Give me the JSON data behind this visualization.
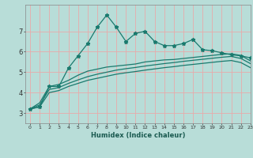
{
  "xlabel": "Humidex (Indice chaleur)",
  "bg_color": "#b8ddd8",
  "grid_color": "#e8aaaa",
  "line_color": "#1a7a6e",
  "x_values": [
    0,
    1,
    2,
    3,
    4,
    5,
    6,
    7,
    8,
    9,
    10,
    11,
    12,
    13,
    14,
    15,
    16,
    17,
    18,
    19,
    20,
    21,
    22,
    23
  ],
  "series1": [
    3.2,
    3.3,
    4.3,
    4.3,
    5.2,
    5.8,
    6.4,
    7.2,
    7.8,
    7.2,
    6.5,
    6.9,
    7.0,
    6.5,
    6.3,
    6.3,
    6.4,
    6.6,
    6.1,
    6.05,
    5.95,
    5.85,
    5.8,
    5.7
  ],
  "series2": [
    3.2,
    3.5,
    4.3,
    4.4,
    4.6,
    4.85,
    5.05,
    5.15,
    5.25,
    5.3,
    5.35,
    5.4,
    5.5,
    5.55,
    5.6,
    5.62,
    5.67,
    5.72,
    5.77,
    5.82,
    5.87,
    5.9,
    5.82,
    5.55
  ],
  "series3": [
    3.2,
    3.4,
    4.15,
    4.25,
    4.45,
    4.62,
    4.78,
    4.9,
    5.0,
    5.1,
    5.17,
    5.23,
    5.3,
    5.36,
    5.42,
    5.47,
    5.53,
    5.58,
    5.63,
    5.68,
    5.73,
    5.77,
    5.67,
    5.42
  ],
  "series4": [
    3.2,
    3.3,
    4.0,
    4.1,
    4.3,
    4.45,
    4.6,
    4.7,
    4.8,
    4.9,
    4.97,
    5.03,
    5.1,
    5.16,
    5.22,
    5.27,
    5.33,
    5.38,
    5.43,
    5.48,
    5.53,
    5.57,
    5.47,
    5.22
  ],
  "ylim": [
    2.5,
    8.3
  ],
  "xlim": [
    -0.5,
    23
  ],
  "yticks": [
    3,
    4,
    5,
    6,
    7
  ],
  "xticks": [
    0,
    1,
    2,
    3,
    4,
    5,
    6,
    7,
    8,
    9,
    10,
    11,
    12,
    13,
    14,
    15,
    16,
    17,
    18,
    19,
    20,
    21,
    22,
    23
  ],
  "xtick_labels": [
    "0",
    "1",
    "2",
    "3",
    "4",
    "5",
    "6",
    "7",
    "8",
    "9",
    "10",
    "11",
    "12",
    "13",
    "14",
    "15",
    "16",
    "17",
    "18",
    "19",
    "20",
    "21",
    "22",
    "23"
  ]
}
